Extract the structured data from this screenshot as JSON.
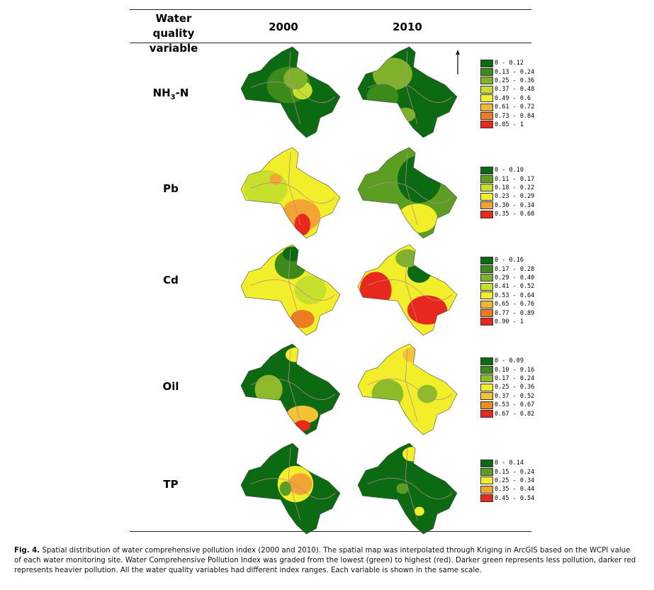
{
  "header": {
    "variable_line1": "Water quality",
    "variable_line2": "variable",
    "year1": "2000",
    "year2": "2010"
  },
  "rows": [
    {
      "name_main": "NH",
      "name_sub": "3",
      "name_rest": "-N",
      "legend": [
        {
          "label": "0 - 0.12",
          "color": "#0b6a12"
        },
        {
          "label": "0.13 - 0.24",
          "color": "#3b8a1a"
        },
        {
          "label": "0.25 - 0.36",
          "color": "#7fb22a"
        },
        {
          "label": "0.37 - 0.48",
          "color": "#c7e02b"
        },
        {
          "label": "0.49 - 0.6",
          "color": "#f2ef2a"
        },
        {
          "label": "0.61 - 0.72",
          "color": "#f3b534"
        },
        {
          "label": "0.73 - 0.84",
          "color": "#ee7a22"
        },
        {
          "label": "0.85 - 1",
          "color": "#e8281c"
        }
      ]
    },
    {
      "name_main": "Pb",
      "name_sub": "",
      "name_rest": "",
      "legend": [
        {
          "label": "0 - 0.10",
          "color": "#0b6a12"
        },
        {
          "label": "0.11 - 0.17",
          "color": "#5c9e22"
        },
        {
          "label": "0.18 - 0.22",
          "color": "#c7e02b"
        },
        {
          "label": "0.23 - 0.29",
          "color": "#f2ef2a"
        },
        {
          "label": "0.30 - 0.34",
          "color": "#f3a534"
        },
        {
          "label": "0.35 - 0.68",
          "color": "#e8281c"
        }
      ]
    },
    {
      "name_main": "Cd",
      "name_sub": "",
      "name_rest": "",
      "legend": [
        {
          "label": "0 - 0.16",
          "color": "#0b6a12"
        },
        {
          "label": "0.17 - 0.28",
          "color": "#3b8a1a"
        },
        {
          "label": "0.29 - 0.40",
          "color": "#7fb22a"
        },
        {
          "label": "0.41 - 0.52",
          "color": "#c7e02b"
        },
        {
          "label": "0.53 - 0.64",
          "color": "#f2ef2a"
        },
        {
          "label": "0.65 - 0.76",
          "color": "#f3b534"
        },
        {
          "label": "0.77 - 0.89",
          "color": "#ee7a22"
        },
        {
          "label": "0.90 - 1",
          "color": "#e8281c"
        }
      ]
    },
    {
      "name_main": "Oil",
      "name_sub": "",
      "name_rest": "",
      "legend": [
        {
          "label": "0 - 0.09",
          "color": "#0b6a12"
        },
        {
          "label": "0.10 - 0.16",
          "color": "#3b8a1a"
        },
        {
          "label": "0.17 - 0.24",
          "color": "#8dbb2a"
        },
        {
          "label": "0.25 - 0.36",
          "color": "#f2ef2a"
        },
        {
          "label": "0.37 - 0.52",
          "color": "#f3c334"
        },
        {
          "label": "0.53 - 0.67",
          "color": "#ee8a22"
        },
        {
          "label": "0.67 - 0.82",
          "color": "#e8281c"
        }
      ]
    },
    {
      "name_main": "TP",
      "name_sub": "",
      "name_rest": "",
      "legend": [
        {
          "label": "0 - 0.14",
          "color": "#0b6a12"
        },
        {
          "label": "0.15 - 0.24",
          "color": "#5c9e22"
        },
        {
          "label": "0.25 - 0.34",
          "color": "#f2ef2a"
        },
        {
          "label": "0.35 - 0.44",
          "color": "#f3a534"
        },
        {
          "label": "0.45 - 0.54",
          "color": "#e8281c"
        }
      ]
    }
  ],
  "maps": [
    {
      "row": 0,
      "year": "2000",
      "base": "#0b6a12",
      "blobs": [
        [
          "#3b8a1a",
          0.48,
          0.42,
          0.22,
          0.2
        ],
        [
          "#c7e02b",
          0.62,
          0.48,
          0.1,
          0.1
        ],
        [
          "#7fb22a",
          0.55,
          0.35,
          0.12,
          0.12
        ]
      ]
    },
    {
      "row": 0,
      "year": "2010",
      "base": "#0b6a12",
      "blobs": [
        [
          "#7fb22a",
          0.35,
          0.3,
          0.2,
          0.18
        ],
        [
          "#3b8a1a",
          0.25,
          0.55,
          0.16,
          0.14
        ],
        [
          "#7fb22a",
          0.48,
          0.75,
          0.1,
          0.08
        ]
      ]
    },
    {
      "row": 1,
      "year": "2000",
      "base": "#f2ef2a",
      "blobs": [
        [
          "#c7e02b",
          0.25,
          0.45,
          0.22,
          0.2
        ],
        [
          "#f3a534",
          0.6,
          0.75,
          0.2,
          0.18
        ],
        [
          "#e8281c",
          0.62,
          0.85,
          0.08,
          0.12
        ],
        [
          "#f3a534",
          0.35,
          0.35,
          0.06,
          0.06
        ]
      ]
    },
    {
      "row": 1,
      "year": "2010",
      "base": "#5c9e22",
      "blobs": [
        [
          "#0b6a12",
          0.62,
          0.35,
          0.22,
          0.26
        ],
        [
          "#f2ef2a",
          0.6,
          0.78,
          0.2,
          0.16
        ]
      ]
    },
    {
      "row": 2,
      "year": "2000",
      "base": "#f2ef2a",
      "blobs": [
        [
          "#3b8a1a",
          0.5,
          0.22,
          0.16,
          0.16
        ],
        [
          "#c7e02b",
          0.7,
          0.5,
          0.16,
          0.16
        ],
        [
          "#ee7a22",
          0.62,
          0.82,
          0.12,
          0.1
        ],
        [
          "#0b6a12",
          0.52,
          0.1,
          0.1,
          0.08
        ]
      ]
    },
    {
      "row": 2,
      "year": "2010",
      "base": "#f2ef2a",
      "blobs": [
        [
          "#e8281c",
          0.18,
          0.5,
          0.16,
          0.2
        ],
        [
          "#e8281c",
          0.7,
          0.72,
          0.2,
          0.16
        ],
        [
          "#0b6a12",
          0.62,
          0.3,
          0.12,
          0.12
        ],
        [
          "#7fb22a",
          0.5,
          0.15,
          0.12,
          0.1
        ]
      ]
    },
    {
      "row": 3,
      "year": "2000",
      "base": "#0b6a12",
      "blobs": [
        [
          "#8dbb2a",
          0.28,
          0.5,
          0.14,
          0.16
        ],
        [
          "#f2ef2a",
          0.55,
          0.12,
          0.1,
          0.08
        ],
        [
          "#f3c334",
          0.62,
          0.78,
          0.16,
          0.1
        ],
        [
          "#e8281c",
          0.62,
          0.9,
          0.08,
          0.06
        ]
      ]
    },
    {
      "row": 3,
      "year": "2010",
      "base": "#f2ef2a",
      "blobs": [
        [
          "#8dbb2a",
          0.3,
          0.55,
          0.16,
          0.16
        ],
        [
          "#f3c334",
          0.55,
          0.12,
          0.1,
          0.08
        ],
        [
          "#8dbb2a",
          0.7,
          0.55,
          0.1,
          0.1
        ]
      ]
    },
    {
      "row": 4,
      "year": "2000",
      "base": "#0b6a12",
      "blobs": [
        [
          "#f2ef2a",
          0.55,
          0.45,
          0.18,
          0.2
        ],
        [
          "#f3a534",
          0.6,
          0.45,
          0.12,
          0.12
        ],
        [
          "#5c9e22",
          0.45,
          0.5,
          0.06,
          0.08
        ]
      ]
    },
    {
      "row": 4,
      "year": "2010",
      "base": "#0b6a12",
      "blobs": [
        [
          "#f2ef2a",
          0.55,
          0.12,
          0.1,
          0.08
        ],
        [
          "#5c9e22",
          0.45,
          0.5,
          0.06,
          0.06
        ],
        [
          "#f2ef2a",
          0.62,
          0.75,
          0.05,
          0.05
        ]
      ]
    }
  ],
  "caption": {
    "label": "Fig. 4.",
    "text": " Spatial distribution of water comprehensive pollution index (2000 and 2010). The spatial map was interpolated through Kriging in ArcGIS based on the WCPI value of each water monitoring site. Water Comprehensive Pollution Index was graded from the lowest (green) to highest (red). Darker green represents less pollution, darker red represents heavier pollution. All the water quality variables had different index ranges. Each variable is shown in the same scale."
  }
}
